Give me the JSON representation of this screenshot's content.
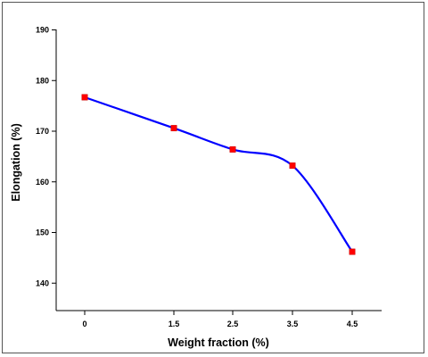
{
  "chart_data": {
    "type": "line",
    "title": "",
    "xlabel": "Weight fraction (%)",
    "ylabel": "Elongation (%)",
    "x_tick_labels": [
      "0",
      "1.5",
      "2.5",
      "3.5",
      "4.5"
    ],
    "y_ticks": [
      140,
      150,
      160,
      170,
      180,
      190
    ],
    "ylim": [
      135,
      190
    ],
    "grid": false,
    "legend": "none",
    "series": [
      {
        "color": "#0000ff",
        "marker_color": "#ff0000",
        "marker": "square",
        "smooth": true,
        "points": [
          {
            "x": "0",
            "y": 176.7
          },
          {
            "x": "1.5",
            "y": 170.6
          },
          {
            "x": "2.5",
            "y": 166.4
          },
          {
            "x": "3.5",
            "y": 163.2
          },
          {
            "x": "4.5",
            "y": 146.2
          }
        ]
      }
    ]
  }
}
